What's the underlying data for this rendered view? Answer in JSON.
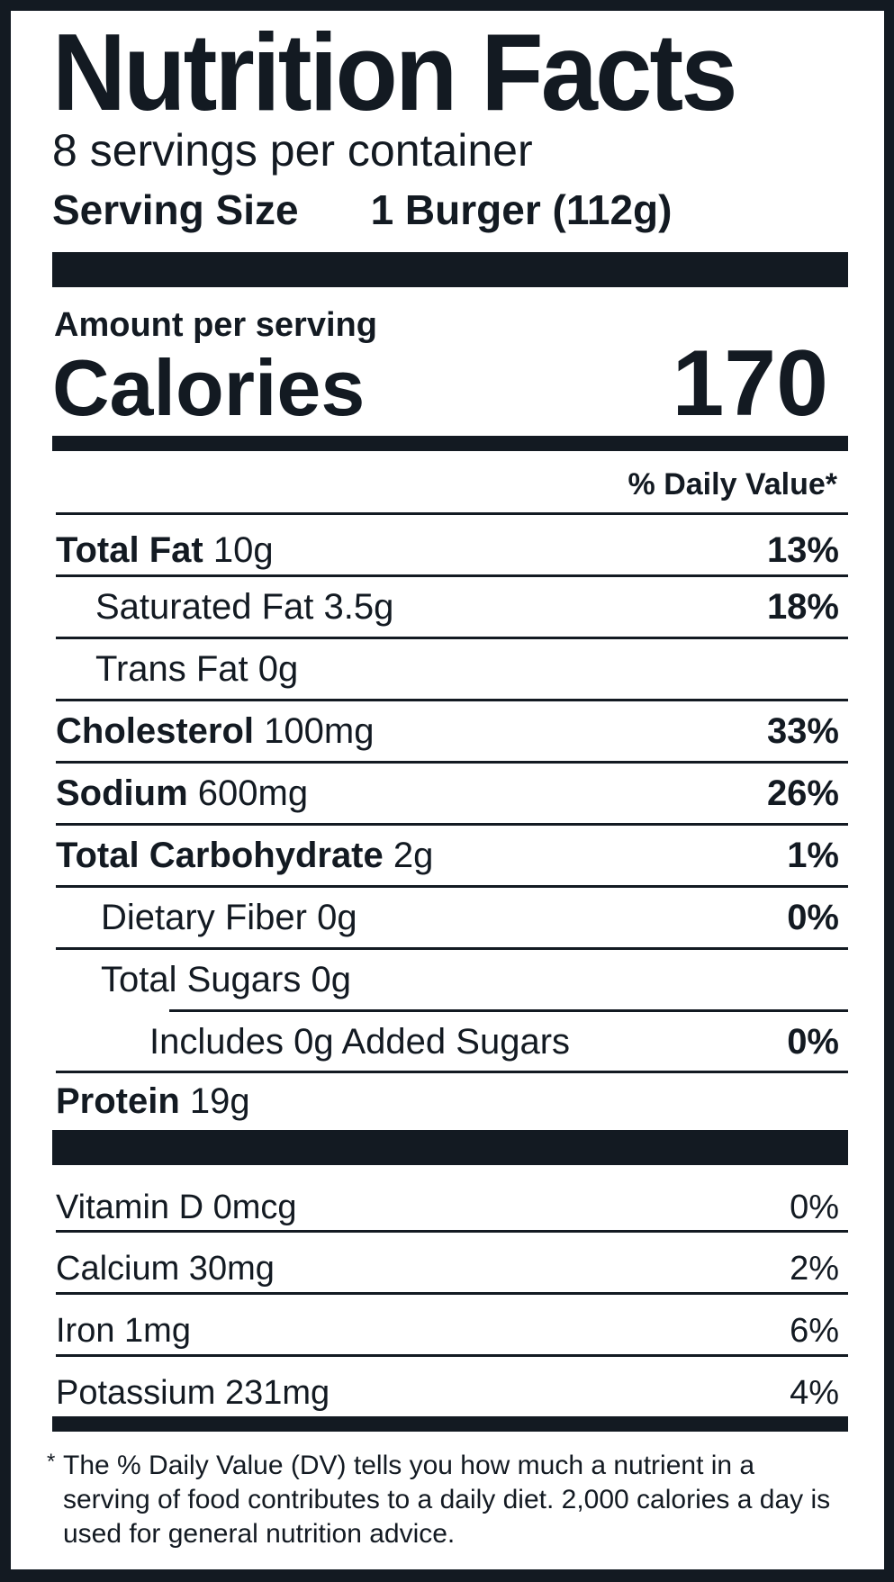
{
  "title": "Nutrition Facts",
  "servings_per_container": "8 servings per container",
  "serving_size": {
    "label": "Serving Size",
    "value": "1 Burger (112g)"
  },
  "amount_per_serving": "Amount per serving",
  "calories": {
    "label": "Calories",
    "value": "170"
  },
  "daily_value_header": "% Daily Value*",
  "nutrients": [
    {
      "name": "Total Fat",
      "amount": "10g",
      "dv": "13%"
    },
    {
      "name": "Saturated Fat",
      "amount": "3.5g",
      "dv": "18%"
    },
    {
      "name": "Trans Fat",
      "amount": "0g",
      "dv": ""
    },
    {
      "name": "Cholesterol",
      "amount": "100mg",
      "dv": "33%"
    },
    {
      "name": "Sodium",
      "amount": "600mg",
      "dv": "26%"
    },
    {
      "name": "Total Carbohydrate",
      "amount": "2g",
      "dv": "1%"
    },
    {
      "name": "Dietary Fiber",
      "amount": "0g",
      "dv": "0%"
    },
    {
      "name": "Total Sugars",
      "amount": "0g",
      "dv": ""
    },
    {
      "name": "Includes 0g Added Sugars",
      "amount": "",
      "dv": "0%"
    },
    {
      "name": "Protein",
      "amount": "19g",
      "dv": ""
    }
  ],
  "vitamins": [
    {
      "text": "Vitamin D 0mcg",
      "dv": "0%"
    },
    {
      "text": "Calcium 30mg",
      "dv": "2%"
    },
    {
      "text": "Iron 1mg",
      "dv": "6%"
    },
    {
      "text": "Potassium 231mg",
      "dv": "4%"
    }
  ],
  "footnote_marker": "*",
  "footnote": "The % Daily Value (DV) tells you how much a nutrient in a serving of food contributes to a daily diet. 2,000 calories a day is used for general nutrition advice."
}
